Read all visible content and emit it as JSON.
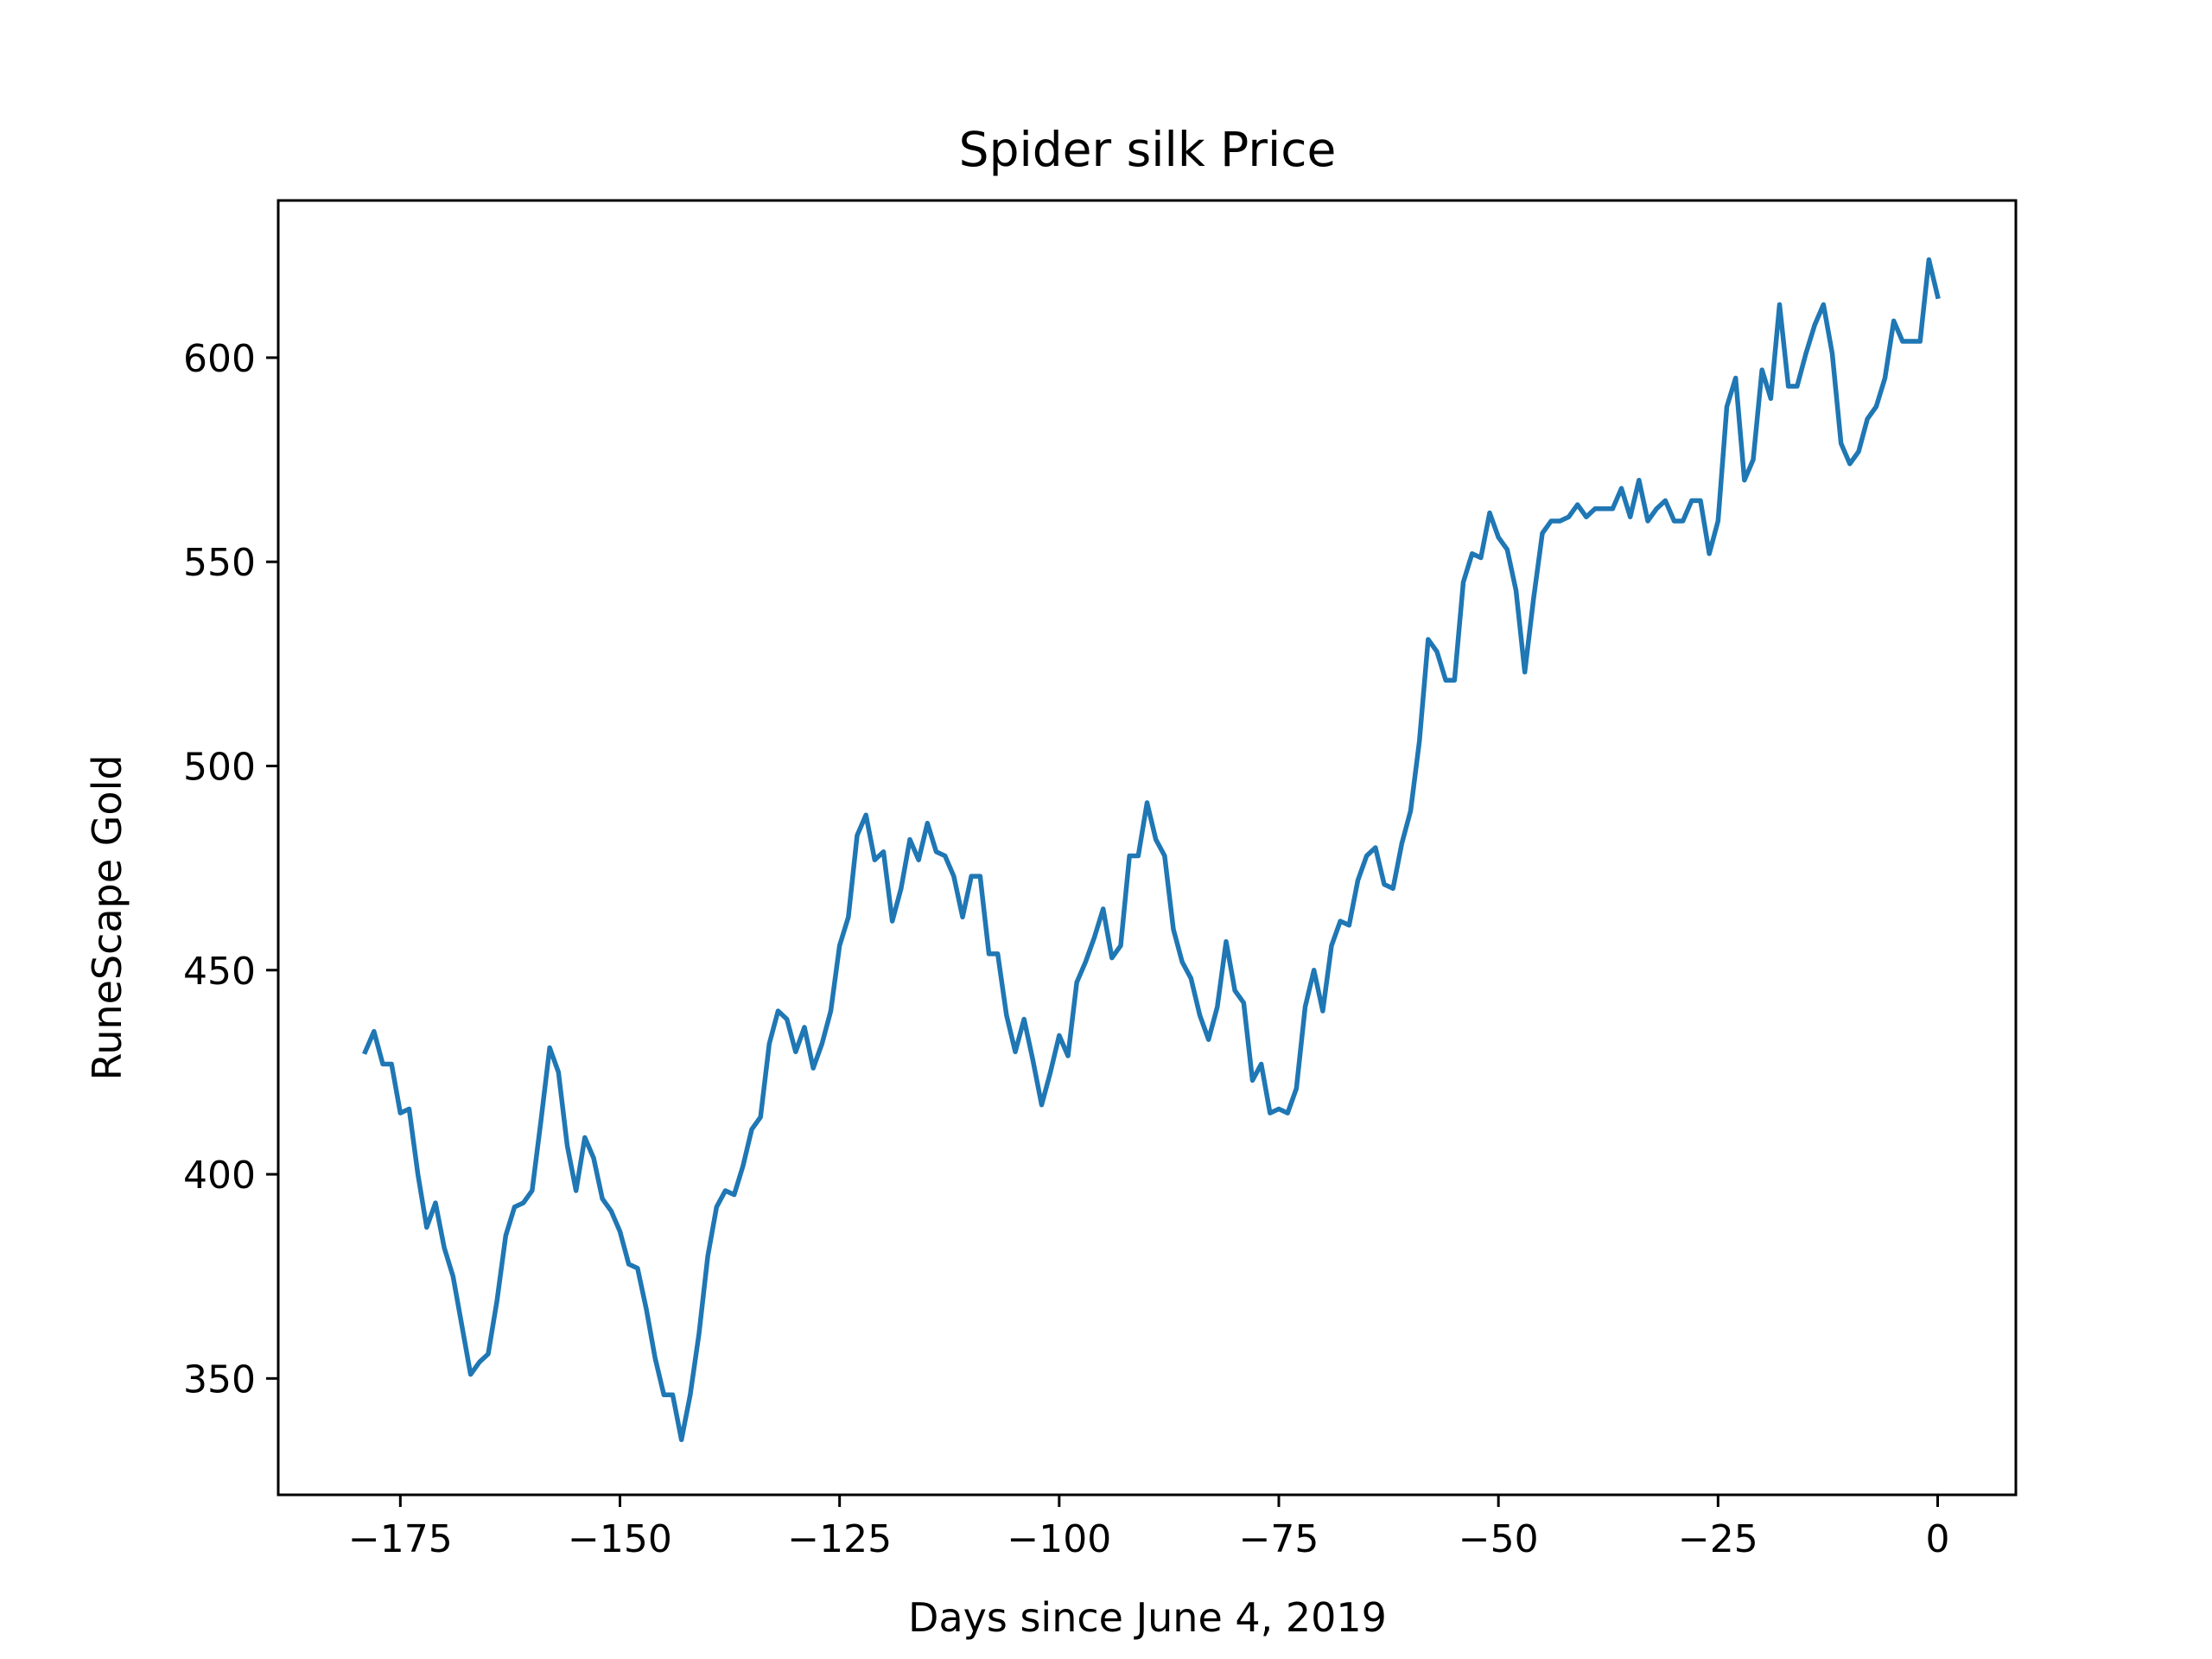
{
  "chart_data": {
    "type": "line",
    "title": "Spider silk Price",
    "xlabel": "Days since June 4, 2019",
    "ylabel": "RuneScape Gold",
    "xlim": [
      -188.9,
      8.9
    ],
    "ylim": [
      321.5,
      638.5
    ],
    "xticks": [
      -175,
      -150,
      -125,
      -100,
      -75,
      -50,
      -25,
      0
    ],
    "xtick_labels": [
      "−175",
      "−150",
      "−125",
      "−100",
      "−75",
      "−50",
      "−25",
      "0"
    ],
    "yticks": [
      350,
      400,
      450,
      500,
      550,
      600
    ],
    "ytick_labels": [
      "350",
      "400",
      "450",
      "500",
      "550",
      "600"
    ],
    "grid": false,
    "line_color": "#1f77b4",
    "series": [
      {
        "x": [
          -179,
          -178,
          -177,
          -176,
          -175,
          -174,
          -173,
          -172,
          -171,
          -170,
          -169,
          -168,
          -167,
          -166,
          -165,
          -164,
          -163,
          -162,
          -161,
          -160,
          -159,
          -158,
          -157,
          -156,
          -155,
          -154,
          -153,
          -152,
          -151,
          -150,
          -149,
          -148,
          -147,
          -146,
          -145,
          -144,
          -143,
          -142,
          -141,
          -140,
          -139,
          -138,
          -137,
          -136,
          -135,
          -134,
          -133,
          -132,
          -131,
          -130,
          -129,
          -128,
          -127,
          -126,
          -125,
          -124,
          -123,
          -122,
          -121,
          -120,
          -119,
          -118,
          -117,
          -116,
          -115,
          -114,
          -113,
          -112,
          -111,
          -110,
          -109,
          -108,
          -107,
          -106,
          -105,
          -104,
          -103,
          -102,
          -101,
          -100,
          -99,
          -98,
          -97,
          -96,
          -95,
          -94,
          -93,
          -92,
          -91,
          -90,
          -89,
          -88,
          -87,
          -86,
          -85,
          -84,
          -83,
          -82,
          -81,
          -80,
          -79,
          -78,
          -77,
          -76,
          -75,
          -74,
          -73,
          -72,
          -71,
          -70,
          -69,
          -68,
          -67,
          -66,
          -65,
          -64,
          -63,
          -62,
          -61,
          -60,
          -59,
          -58,
          -57,
          -56,
          -55,
          -54,
          -53,
          -52,
          -51,
          -50,
          -49,
          -48,
          -47,
          -46,
          -45,
          -44,
          -43,
          -42,
          -41,
          -40,
          -39,
          -38,
          -37,
          -36,
          -35,
          -34,
          -33,
          -32,
          -31,
          -30,
          -29,
          -28,
          -27,
          -26,
          -25,
          -24,
          -23,
          -22,
          -21,
          -20,
          -19,
          -18,
          -17,
          -16,
          -15,
          -14,
          -13,
          -12,
          -11,
          -10,
          -9,
          -8,
          -7,
          -6,
          -5,
          -4,
          -3,
          -2,
          -1,
          0
        ],
        "y": [
          430,
          435,
          427,
          427,
          415,
          416,
          400,
          387,
          393,
          382,
          375,
          363,
          351,
          354,
          356,
          369,
          385,
          392,
          393,
          396,
          413,
          431,
          425,
          407,
          396,
          409,
          404,
          394,
          391,
          386,
          378,
          377,
          367,
          355,
          346,
          346,
          335,
          346,
          361,
          380,
          392,
          396,
          395,
          402,
          411,
          414,
          432,
          440,
          438,
          430,
          436,
          426,
          432,
          440,
          456,
          463,
          483,
          488,
          477,
          479,
          462,
          470,
          482,
          477,
          486,
          479,
          478,
          473,
          463,
          473,
          473,
          454,
          454,
          439,
          430,
          438,
          428,
          417,
          425,
          434,
          429,
          447,
          452,
          458,
          465,
          453,
          456,
          478,
          478,
          491,
          482,
          478,
          460,
          452,
          448,
          439,
          433,
          441,
          457,
          445,
          442,
          423,
          427,
          415,
          416,
          415,
          421,
          441,
          450,
          440,
          456,
          462,
          461,
          472,
          478,
          480,
          471,
          470,
          481,
          489,
          506,
          531,
          528,
          521,
          521,
          545,
          552,
          551,
          562,
          556,
          553,
          543,
          523,
          541,
          557,
          560,
          560,
          561,
          564,
          561,
          563,
          563,
          563,
          568,
          561,
          570,
          560,
          563,
          565,
          560,
          560,
          565,
          565,
          552,
          560,
          588,
          595,
          570,
          575,
          597,
          590,
          613,
          593,
          593,
          601,
          608,
          613,
          601,
          579,
          574,
          577,
          585,
          588,
          595,
          609,
          604,
          604,
          604,
          624,
          615
        ]
      }
    ]
  }
}
